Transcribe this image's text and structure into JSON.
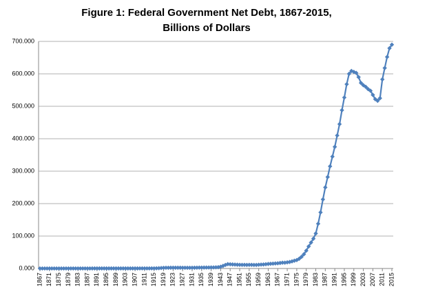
{
  "chart_data": {
    "type": "line",
    "title": "Figure 1: Federal Government Net Debt, 1867-2015, Billions of Dollars",
    "x": [
      1867,
      1868,
      1869,
      1870,
      1871,
      1872,
      1873,
      1874,
      1875,
      1876,
      1877,
      1878,
      1879,
      1880,
      1881,
      1882,
      1883,
      1884,
      1885,
      1886,
      1887,
      1888,
      1889,
      1890,
      1891,
      1892,
      1893,
      1894,
      1895,
      1896,
      1897,
      1898,
      1899,
      1900,
      1901,
      1902,
      1903,
      1904,
      1905,
      1906,
      1907,
      1908,
      1909,
      1910,
      1911,
      1912,
      1913,
      1914,
      1915,
      1916,
      1917,
      1918,
      1919,
      1920,
      1921,
      1922,
      1923,
      1924,
      1925,
      1926,
      1927,
      1928,
      1929,
      1930,
      1931,
      1932,
      1933,
      1934,
      1935,
      1936,
      1937,
      1938,
      1939,
      1940,
      1941,
      1942,
      1943,
      1944,
      1945,
      1946,
      1947,
      1948,
      1949,
      1950,
      1951,
      1952,
      1953,
      1954,
      1955,
      1956,
      1957,
      1958,
      1959,
      1960,
      1961,
      1962,
      1963,
      1964,
      1965,
      1966,
      1967,
      1968,
      1969,
      1970,
      1971,
      1972,
      1973,
      1974,
      1975,
      1976,
      1977,
      1978,
      1979,
      1980,
      1981,
      1982,
      1983,
      1984,
      1985,
      1986,
      1987,
      1988,
      1989,
      1990,
      1991,
      1992,
      1993,
      1994,
      1995,
      1996,
      1997,
      1998,
      1999,
      2000,
      2001,
      2002,
      2003,
      2004,
      2005,
      2006,
      2007,
      2008,
      2009,
      2010,
      2011,
      2012,
      2013,
      2014,
      2015
    ],
    "series": [
      {
        "name": "Net Debt",
        "color": "#4f81bd",
        "values": [
          0.08,
          0.08,
          0.09,
          0.09,
          0.1,
          0.1,
          0.1,
          0.11,
          0.12,
          0.13,
          0.13,
          0.14,
          0.14,
          0.15,
          0.16,
          0.16,
          0.17,
          0.18,
          0.19,
          0.2,
          0.23,
          0.23,
          0.24,
          0.24,
          0.24,
          0.24,
          0.24,
          0.24,
          0.25,
          0.25,
          0.26,
          0.26,
          0.27,
          0.27,
          0.27,
          0.27,
          0.28,
          0.27,
          0.27,
          0.27,
          0.28,
          0.28,
          0.3,
          0.32,
          0.34,
          0.34,
          0.34,
          0.4,
          0.5,
          0.7,
          1.0,
          1.5,
          2.0,
          2.3,
          2.3,
          2.4,
          2.4,
          2.4,
          2.4,
          2.4,
          2.3,
          2.3,
          2.2,
          2.2,
          2.3,
          2.4,
          2.6,
          2.7,
          2.8,
          2.9,
          3.0,
          3.1,
          3.2,
          3.3,
          3.6,
          4.0,
          5.5,
          8.0,
          11.0,
          13.4,
          13.0,
          12.5,
          12.0,
          11.7,
          11.4,
          11.2,
          11.2,
          11.1,
          11.2,
          11.3,
          11.0,
          11.0,
          11.6,
          12.1,
          12.4,
          13.2,
          14.0,
          14.6,
          15.0,
          15.6,
          16.0,
          17.0,
          18.0,
          18.0,
          19.0,
          20.0,
          22.0,
          24.0,
          26.0,
          30,
          36,
          44,
          55,
          68,
          80,
          92,
          108,
          138,
          173,
          213,
          250,
          282,
          315,
          345,
          375,
          410,
          445,
          488,
          527,
          568,
          600,
          609,
          606,
          603,
          590,
          572,
          565,
          560,
          553,
          548,
          535,
          522,
          517,
          525,
          583,
          618,
          652,
          679,
          690
        ]
      }
    ],
    "xlim": [
      1867,
      2015
    ],
    "xticks": [
      1867,
      1871,
      1875,
      1879,
      1883,
      1887,
      1891,
      1895,
      1899,
      1903,
      1907,
      1911,
      1915,
      1919,
      1923,
      1927,
      1931,
      1935,
      1939,
      1943,
      1947,
      1951,
      1955,
      1959,
      1963,
      1967,
      1971,
      1975,
      1979,
      1983,
      1987,
      1991,
      1995,
      1999,
      2003,
      2007,
      2011,
      2015
    ],
    "ylim": [
      0,
      700
    ],
    "yticks": [
      {
        "value": 0,
        "label": "0.000"
      },
      {
        "value": 100,
        "label": "100.000"
      },
      {
        "value": 200,
        "label": "200.000"
      },
      {
        "value": 300,
        "label": "300.000"
      },
      {
        "value": 400,
        "label": "400.000"
      },
      {
        "value": 500,
        "label": "500.000"
      },
      {
        "value": 600,
        "label": "600.000"
      },
      {
        "value": 700,
        "label": "700.000"
      }
    ],
    "grid": true
  }
}
